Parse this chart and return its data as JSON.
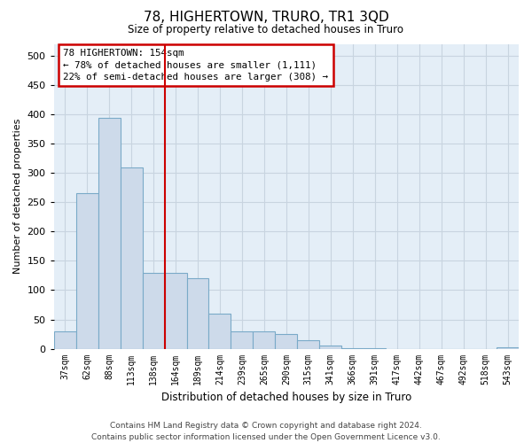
{
  "title": "78, HIGHERTOWN, TRURO, TR1 3QD",
  "subtitle": "Size of property relative to detached houses in Truro",
  "xlabel": "Distribution of detached houses by size in Truro",
  "ylabel": "Number of detached properties",
  "footer": "Contains HM Land Registry data © Crown copyright and database right 2024.\nContains public sector information licensed under the Open Government Licence v3.0.",
  "bar_labels": [
    "37sqm",
    "62sqm",
    "88sqm",
    "113sqm",
    "138sqm",
    "164sqm",
    "189sqm",
    "214sqm",
    "239sqm",
    "265sqm",
    "290sqm",
    "315sqm",
    "341sqm",
    "366sqm",
    "391sqm",
    "417sqm",
    "442sqm",
    "467sqm",
    "492sqm",
    "518sqm",
    "543sqm"
  ],
  "bar_values": [
    30,
    265,
    395,
    310,
    130,
    130,
    120,
    60,
    30,
    30,
    25,
    15,
    5,
    1,
    1,
    0,
    0,
    0,
    0,
    0,
    2
  ],
  "bar_color": "#cddaea",
  "bar_edge_color": "#7aaac8",
  "vline_index": 5,
  "annotation_text": "78 HIGHERTOWN: 154sqm\n← 78% of detached houses are smaller (1,111)\n22% of semi-detached houses are larger (308) →",
  "annotation_box_color": "#ffffff",
  "annotation_box_edge": "#cc0000",
  "vline_color": "#cc0000",
  "ylim": [
    0,
    520
  ],
  "yticks": [
    0,
    50,
    100,
    150,
    200,
    250,
    300,
    350,
    400,
    450,
    500
  ],
  "grid_color": "#c8d4e0",
  "bg_color": "#e4eef7"
}
